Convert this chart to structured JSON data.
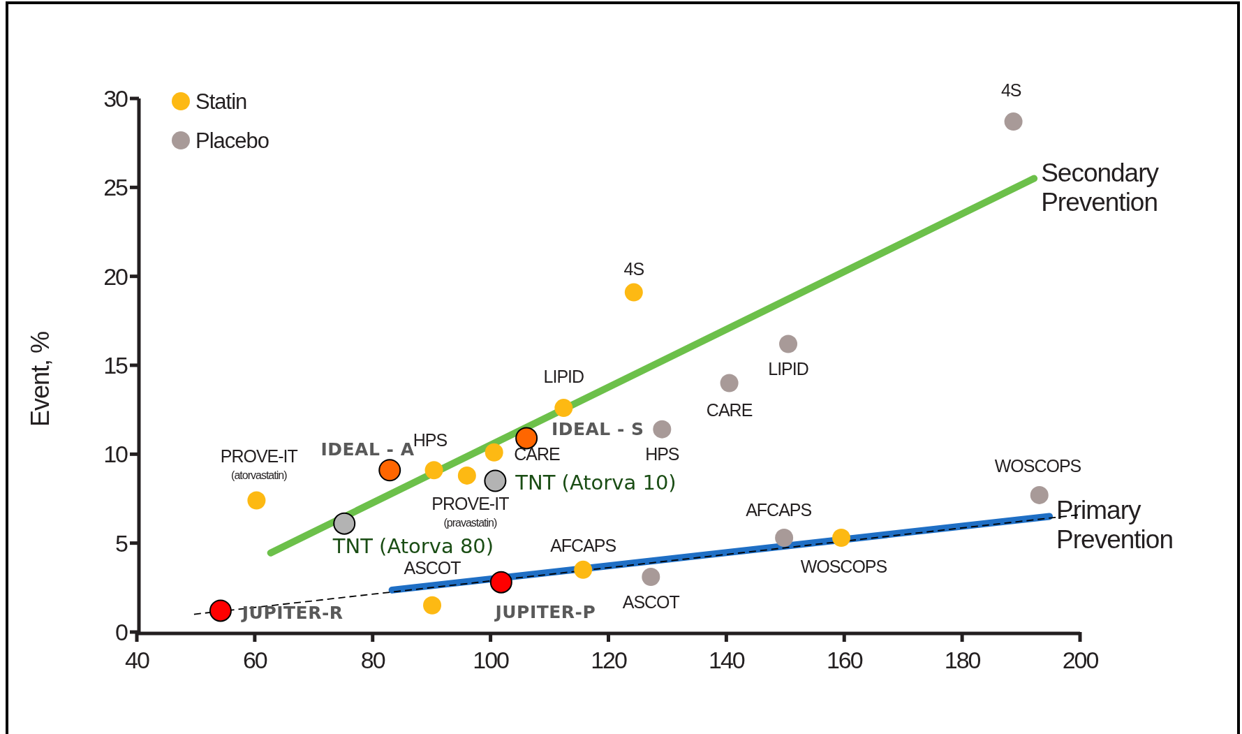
{
  "chart_data": {
    "type": "scatter",
    "ylabel": "Event, %",
    "xlim": [
      40,
      200
    ],
    "ylim": [
      0,
      30
    ],
    "xticks": [
      40,
      60,
      80,
      100,
      120,
      140,
      160,
      180,
      200
    ],
    "yticks": [
      0,
      5,
      10,
      15,
      20,
      25,
      30
    ],
    "grid": false,
    "legend": "top left",
    "marker": "circle",
    "series": [
      {
        "name": "Statin",
        "color": "#fdb913",
        "x": [
          124.3,
          112.4,
          100.6,
          90.4,
          96.0,
          60.3,
          115.7,
          159.5,
          90.1
        ],
        "values": [
          19.1,
          12.6,
          10.1,
          9.1,
          8.8,
          7.4,
          3.5,
          5.3,
          1.5
        ]
      },
      {
        "name": "Placebo",
        "color": "#a89a98",
        "x": [
          188.7,
          150.5,
          140.5,
          129.1,
          193.1,
          149.8,
          127.2
        ],
        "values": [
          28.7,
          16.2,
          14.0,
          11.4,
          7.7,
          5.3,
          3.1
        ]
      },
      {
        "color": "#ff6600",
        "x": [
          82.9,
          106.1
        ],
        "values": [
          9.1,
          10.9
        ]
      },
      {
        "color": "#b3b3b3",
        "x": [
          75.2,
          100.8
        ],
        "values": [
          6.1,
          8.5
        ]
      },
      {
        "color": "#ff0000",
        "x": [
          54.2,
          101.8
        ],
        "values": [
          1.2,
          2.8
        ]
      },
      {
        "name": "Secondary Prevention",
        "type": "line",
        "marker": "none",
        "color": "#6cc04a",
        "x": [
          62.7,
          192.2
        ],
        "values": [
          4.45,
          25.5
        ]
      },
      {
        "name": "Primary Prevention",
        "type": "line",
        "marker": "none",
        "color": "#1f6fc5",
        "x": [
          83.3,
          194.8
        ],
        "values": [
          2.36,
          6.5
        ]
      },
      {
        "type": "line",
        "marker": "none",
        "color": "#000000",
        "line_style": "dashed",
        "x": [
          49.7,
          200
        ],
        "values": [
          1.0,
          6.6
        ]
      }
    ],
    "annotations": [
      {
        "text": "4S",
        "x": 124.3,
        "y": 19.1
      },
      {
        "text": "LIPID",
        "x": 112.4,
        "y": 12.6
      },
      {
        "text": "CARE",
        "x": 100.6,
        "y": 10.1
      },
      {
        "text": "HPS",
        "x": 90.4,
        "y": 9.1
      },
      {
        "text": "PROVE-IT\n(pravastatin)",
        "x": 96.0,
        "y": 8.8
      },
      {
        "text": "PROVE-IT\n(atorvastatin)",
        "x": 60.3,
        "y": 7.4
      },
      {
        "text": "AFCAPS",
        "x": 115.7,
        "y": 3.5
      },
      {
        "text": "WOSCOPS",
        "x": 159.5,
        "y": 5.3
      },
      {
        "text": "ASCOT",
        "x": 90.1,
        "y": 1.5
      },
      {
        "text": "4S",
        "x": 188.7,
        "y": 28.7
      },
      {
        "text": "LIPID",
        "x": 150.5,
        "y": 16.2
      },
      {
        "text": "CARE",
        "x": 140.5,
        "y": 14.0
      },
      {
        "text": "HPS",
        "x": 129.1,
        "y": 11.4
      },
      {
        "text": "WOSCOPS",
        "x": 193.1,
        "y": 7.7
      },
      {
        "text": "AFCAPS",
        "x": 149.8,
        "y": 5.3
      },
      {
        "text": "ASCOT",
        "x": 127.2,
        "y": 3.1
      },
      {
        "text": "IDEAL - A",
        "x": 82.9,
        "y": 9.1
      },
      {
        "text": "IDEAL - S",
        "x": 106.1,
        "y": 10.9
      },
      {
        "text": "TNT (Atorva 80)",
        "x": 75.2,
        "y": 6.1
      },
      {
        "text": "TNT (Atorva 10)",
        "x": 100.8,
        "y": 8.5
      },
      {
        "text": "JUPITER-R",
        "x": 54.2,
        "y": 1.2
      },
      {
        "text": "JUPITER-P",
        "x": 101.8,
        "y": 2.8
      }
    ]
  }
}
